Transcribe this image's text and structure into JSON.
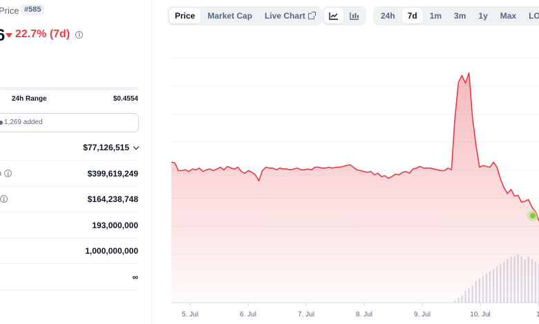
{
  "coin": {
    "label": "Price",
    "rank": "#585",
    "price_tail": "6",
    "change": "22.7% (7d)",
    "change_color": "#ea3943"
  },
  "range": {
    "label": "24h Range",
    "high": "$0.4554"
  },
  "watchlist": {
    "text": "1,269 added"
  },
  "stats": [
    {
      "label": "",
      "value": "$77,126,515",
      "has_info": false,
      "has_chevron": true
    },
    {
      "label": "n",
      "value": "$399,619,249",
      "has_info": true,
      "has_chevron": false
    },
    {
      "label": "",
      "value": "$164,238,748",
      "has_info": true,
      "has_chevron": false
    },
    {
      "label": "",
      "value": "193,000,000",
      "has_info": false,
      "has_chevron": false
    },
    {
      "label": "",
      "value": "1,000,000,000",
      "has_info": false,
      "has_chevron": false
    },
    {
      "label": "",
      "value": "∞",
      "has_info": false,
      "has_chevron": false
    }
  ],
  "toolbar": {
    "views": [
      {
        "label": "Price",
        "active": true
      },
      {
        "label": "Market Cap",
        "active": false
      },
      {
        "label": "Live Chart",
        "active": false
      }
    ],
    "chart_types": [
      "line-chart-icon",
      "candlestick-icon"
    ],
    "ranges": [
      {
        "label": "24h",
        "active": false
      },
      {
        "label": "7d",
        "active": true
      },
      {
        "label": "1m",
        "active": false
      },
      {
        "label": "3m",
        "active": false
      },
      {
        "label": "1y",
        "active": false
      },
      {
        "label": "Max",
        "active": false
      },
      {
        "label": "LOG",
        "active": false
      }
    ]
  },
  "chart_data": {
    "type": "area",
    "x_tick_labels": [
      "5. Jul",
      "6. Jul",
      "7. Jul",
      "8. Jul",
      "9. Jul",
      "10. Jul",
      "1"
    ],
    "price_color": "#ea3943",
    "grid": true,
    "series": [
      {
        "values": [
          0.402,
          0.401,
          0.392,
          0.392,
          0.393,
          0.391,
          0.394,
          0.393,
          0.395,
          0.391,
          0.393,
          0.394,
          0.392,
          0.394,
          0.396,
          0.393,
          0.397,
          0.395,
          0.394,
          0.396,
          0.391,
          0.389,
          0.392,
          0.39,
          0.387,
          0.38,
          0.392,
          0.396,
          0.395,
          0.395,
          0.393,
          0.395,
          0.394,
          0.394,
          0.393,
          0.394,
          0.395,
          0.393,
          0.393,
          0.394,
          0.393,
          0.396,
          0.396,
          0.395,
          0.395,
          0.396,
          0.395,
          0.396,
          0.396,
          0.397,
          0.398,
          0.399,
          0.396,
          0.393,
          0.392,
          0.391,
          0.39,
          0.391,
          0.387,
          0.389,
          0.385,
          0.386,
          0.383,
          0.385,
          0.388,
          0.387,
          0.39,
          0.391,
          0.389,
          0.394,
          0.395,
          0.397,
          0.395,
          0.395,
          0.395,
          0.394,
          0.393,
          0.392,
          0.392,
          0.395,
          0.393,
          0.455,
          0.496,
          0.504,
          0.495,
          0.507,
          0.455,
          0.422,
          0.396,
          0.398,
          0.397,
          0.396,
          0.402,
          0.396,
          0.382,
          0.372,
          0.365,
          0.37,
          0.362,
          0.363,
          0.355,
          0.356,
          0.358,
          0.349,
          0.344,
          0.333
        ],
        "dot": 0.339
      }
    ],
    "volume": [
      0,
      0,
      0,
      0,
      0,
      0,
      0,
      0,
      0,
      0,
      0,
      0,
      0,
      0,
      0,
      0,
      0,
      0,
      0,
      0,
      0,
      0,
      0,
      0,
      0,
      0,
      0,
      0,
      0,
      0,
      0,
      0,
      0,
      0,
      0,
      0,
      0,
      0,
      0,
      0,
      0,
      0,
      0,
      0,
      0,
      0,
      0,
      0,
      0,
      0,
      0,
      0,
      0,
      0,
      0,
      0,
      0,
      0,
      0,
      0,
      0,
      0,
      0,
      0,
      0,
      0,
      0,
      0,
      0,
      0,
      0,
      0,
      0,
      0,
      0,
      0,
      0,
      0,
      0,
      0,
      0,
      0.05,
      0.1,
      0.15,
      0.25,
      0.3,
      0.35,
      0.45,
      0.5,
      0.55,
      0.6,
      0.65,
      0.7,
      0.75,
      0.8,
      0.85,
      0.9,
      0.95,
      0.95,
      1.0,
      0.95,
      0.9,
      0.95,
      0.9,
      0.85,
      0.8
    ]
  }
}
